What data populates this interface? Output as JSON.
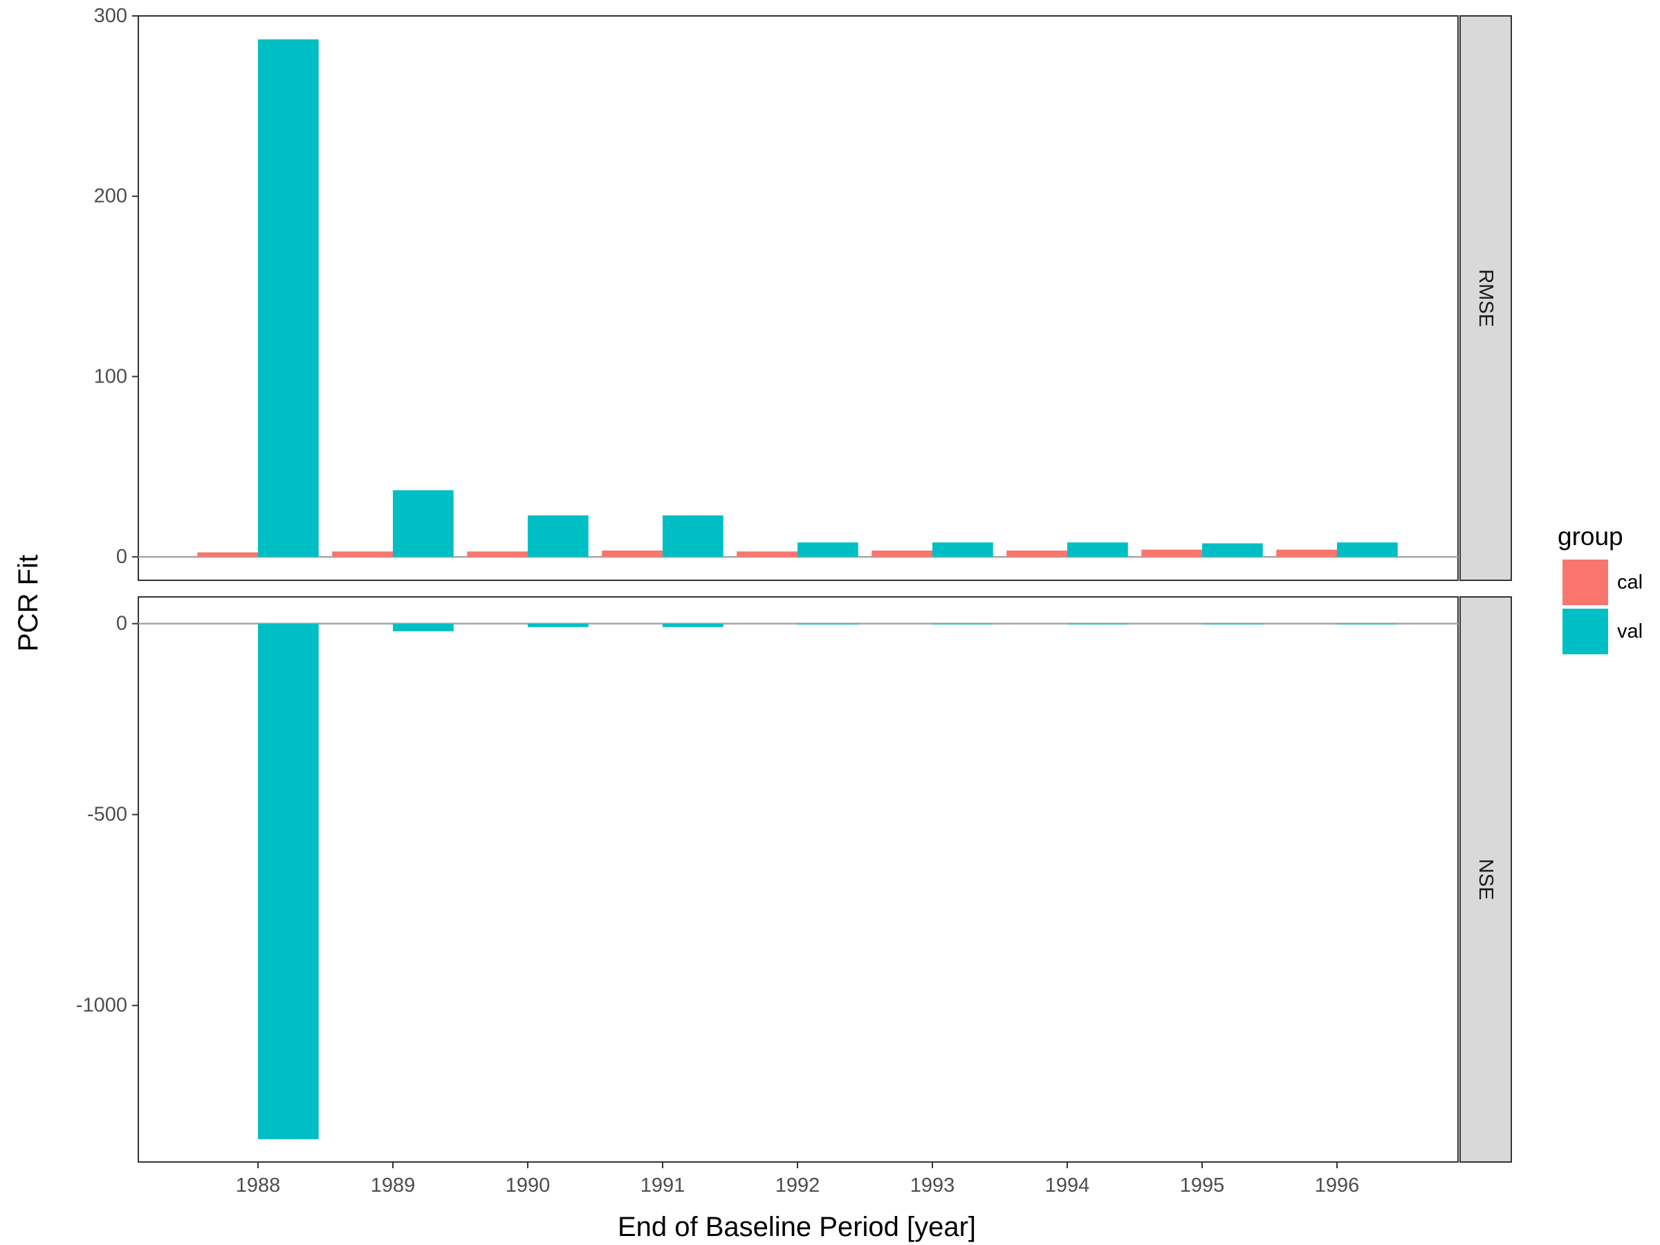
{
  "chart_data": {
    "type": "bar",
    "xlabel": "End of Baseline Period [year]",
    "ylabel": "PCR Fit",
    "categories": [
      "1988",
      "1989",
      "1990",
      "1991",
      "1992",
      "1993",
      "1994",
      "1995",
      "1996"
    ],
    "legend": {
      "title": "group",
      "position": "right",
      "entries": [
        {
          "name": "cal",
          "color": "#F8766D"
        },
        {
          "name": "val",
          "color": "#00BFC4"
        }
      ]
    },
    "facets": [
      {
        "strip": "RMSE",
        "ylim": [
          -13,
          300
        ],
        "yticks": [
          0,
          100,
          200,
          300
        ],
        "series": [
          {
            "name": "cal",
            "values": [
              2.5,
              3.0,
              3.0,
              3.5,
              3.0,
              3.5,
              3.5,
              4.0,
              4.0
            ]
          },
          {
            "name": "val",
            "values": [
              287,
              37,
              23,
              23,
              8,
              8,
              8,
              7.5,
              8
            ]
          }
        ]
      },
      {
        "strip": "NSE",
        "ylim": [
          -1410,
          70
        ],
        "yticks": [
          -1000,
          -500,
          0
        ],
        "series": [
          {
            "name": "cal",
            "values": [
              0,
              0,
              0,
              0,
              0,
              0,
              0,
              0,
              0
            ]
          },
          {
            "name": "val",
            "values": [
              -1350,
              -20,
              -9,
              -9,
              -2,
              -1,
              -1,
              -1,
              -1
            ]
          }
        ]
      }
    ],
    "grid": false,
    "zero_line": true
  }
}
